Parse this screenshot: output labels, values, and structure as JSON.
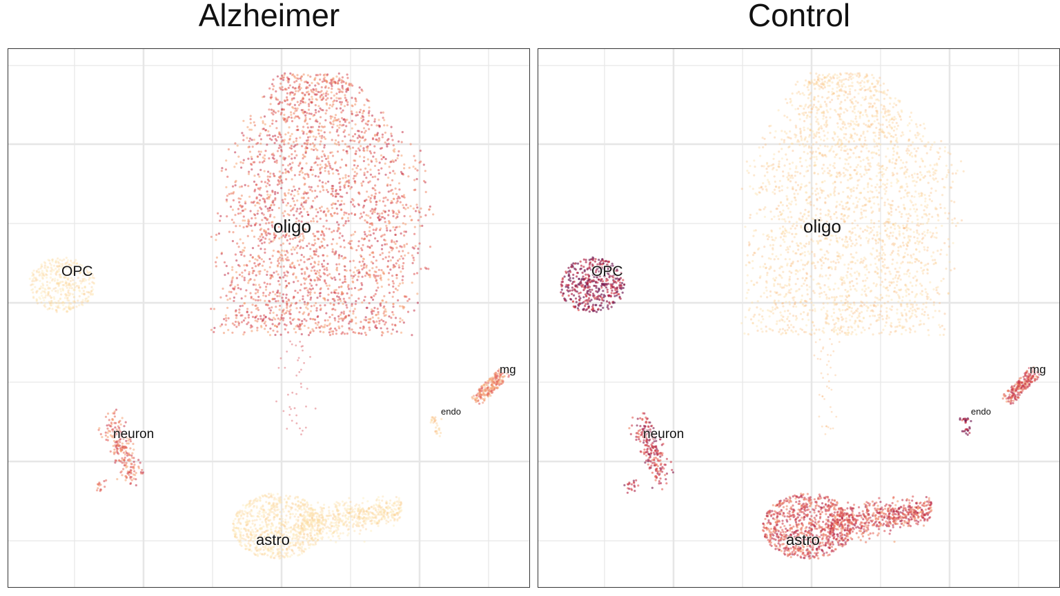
{
  "chart_data": {
    "type": "scatter",
    "facets": [
      "Alzheimer",
      "Control"
    ],
    "clusters": [
      {
        "name": "oligo",
        "x": 0.0,
        "y": 0.05
      },
      {
        "name": "OPC",
        "x": -0.93,
        "y": -0.05
      },
      {
        "name": "neuron",
        "x": -0.8,
        "y": -0.58
      },
      {
        "name": "astro",
        "x": -0.07,
        "y": -0.85
      },
      {
        "name": "mg",
        "x": 0.88,
        "y": -0.33
      },
      {
        "name": "endo",
        "x": 0.78,
        "y": -0.47
      }
    ],
    "xlim": [
      -1.1,
      1.0
    ],
    "ylim": [
      -1.1,
      0.8
    ],
    "grid": true,
    "axis_labels_shown": false,
    "color_scale": [
      "#fde9b0",
      "#fbc68a",
      "#f39a6b",
      "#e0504f",
      "#b11f45",
      "#6e1a52"
    ],
    "intensity": {
      "Alzheimer": {
        "oligo": 0.55,
        "OPC": 0.08,
        "neuron": 0.55,
        "astro": 0.08,
        "mg": 0.45,
        "endo": 0.2
      },
      "Control": {
        "oligo": 0.15,
        "OPC": 0.88,
        "neuron": 0.72,
        "astro": 0.62,
        "mg": 0.6,
        "endo": 0.85
      }
    }
  }
}
